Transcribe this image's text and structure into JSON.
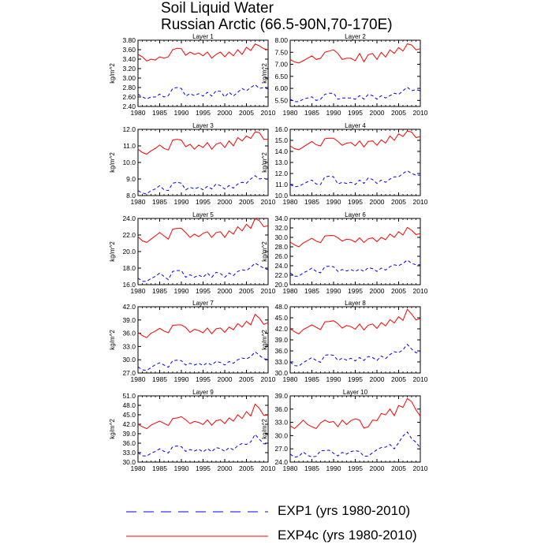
{
  "figure": {
    "title": "Soil Liquid Water",
    "subtitle": "Russian Arctic (66.5-90N,70-170E)"
  },
  "legend": {
    "items": [
      {
        "label": "EXP1 (yrs 1980-2010)",
        "color": "#0000ff",
        "style": "dashed"
      },
      {
        "label": "EXP4c (yrs 1980-2010)",
        "color": "#ff0000",
        "style": "solid"
      }
    ]
  },
  "chart_data": [
    {
      "type": "line",
      "title": "Layer 1",
      "ylabel": "kg/m^2",
      "xlim": [
        1980,
        2010
      ],
      "xticks": [
        "1980",
        "1985",
        "1990",
        "1995",
        "2000",
        "2005",
        "2010"
      ],
      "ylim": [
        2.4,
        3.8
      ],
      "yticks": [
        "2.40",
        "2.60",
        "2.80",
        "3.00",
        "3.20",
        "3.40",
        "3.60",
        "3.80"
      ],
      "years_start": 1980,
      "series": [
        {
          "name": "EXP1 (yrs 1980-2010)",
          "values": [
            2.66,
            2.6,
            2.56,
            2.6,
            2.6,
            2.66,
            2.6,
            2.63,
            2.78,
            2.8,
            2.78,
            2.62,
            2.67,
            2.63,
            2.67,
            2.62,
            2.7,
            2.62,
            2.73,
            2.72,
            2.6,
            2.7,
            2.62,
            2.7,
            2.78,
            2.73,
            2.8,
            2.86,
            2.78,
            2.8,
            2.77
          ]
        },
        {
          "name": "EXP4c (yrs 1980-2010)",
          "values": [
            3.5,
            3.45,
            3.36,
            3.4,
            3.38,
            3.45,
            3.42,
            3.45,
            3.6,
            3.63,
            3.62,
            3.48,
            3.55,
            3.5,
            3.53,
            3.47,
            3.55,
            3.42,
            3.5,
            3.55,
            3.45,
            3.55,
            3.47,
            3.6,
            3.5,
            3.65,
            3.58,
            3.72,
            3.68,
            3.62,
            3.6
          ]
        }
      ]
    },
    {
      "type": "line",
      "title": "Layer 2",
      "ylabel": "kg/m^2",
      "xlim": [
        1980,
        2010
      ],
      "xticks": [
        "1980",
        "1985",
        "1990",
        "1995",
        "2000",
        "2005",
        "2010"
      ],
      "ylim": [
        5.25,
        8.0
      ],
      "yticks": [
        "5.50",
        "6.00",
        "6.50",
        "7.00",
        "7.50",
        "8.00"
      ],
      "years_start": 1980,
      "series": [
        {
          "name": "EXP1 (yrs 1980-2010)",
          "values": [
            5.55,
            5.45,
            5.45,
            5.55,
            5.6,
            5.65,
            5.5,
            5.55,
            5.75,
            5.8,
            5.8,
            5.55,
            5.6,
            5.6,
            5.6,
            5.55,
            5.7,
            5.55,
            5.75,
            5.7,
            5.55,
            5.7,
            5.6,
            5.7,
            5.8,
            5.75,
            5.9,
            6.05,
            5.9,
            5.95,
            5.9
          ]
        },
        {
          "name": "EXP4c (yrs 1980-2010)",
          "values": [
            7.2,
            7.1,
            7.05,
            7.15,
            7.25,
            7.35,
            7.2,
            7.25,
            7.5,
            7.55,
            7.6,
            7.45,
            7.2,
            7.25,
            7.25,
            7.15,
            7.45,
            7.1,
            7.4,
            7.45,
            7.2,
            7.5,
            7.3,
            7.6,
            7.45,
            7.7,
            7.55,
            7.85,
            7.8,
            7.6,
            7.65
          ]
        }
      ]
    },
    {
      "type": "line",
      "title": "Layer 3",
      "ylabel": "kg/m^2",
      "xlim": [
        1980,
        2010
      ],
      "xticks": [
        "1980",
        "1985",
        "1990",
        "1995",
        "2000",
        "2005",
        "2010"
      ],
      "ylim": [
        8.0,
        12.0
      ],
      "yticks": [
        "8.0",
        "9.0",
        "10.0",
        "11.0",
        "12.0"
      ],
      "years_start": 1980,
      "series": [
        {
          "name": "EXP1 (yrs 1980-2010)",
          "values": [
            8.3,
            8.15,
            8.1,
            8.3,
            8.4,
            8.6,
            8.35,
            8.3,
            8.75,
            8.8,
            8.75,
            8.35,
            8.5,
            8.4,
            8.5,
            8.35,
            8.55,
            8.4,
            8.7,
            8.6,
            8.4,
            8.6,
            8.45,
            8.7,
            8.8,
            8.75,
            9.0,
            9.2,
            9.0,
            9.05,
            8.95
          ]
        },
        {
          "name": "EXP4c (yrs 1980-2010)",
          "values": [
            10.8,
            10.6,
            10.5,
            10.7,
            10.85,
            11.05,
            10.85,
            10.75,
            11.35,
            11.4,
            11.35,
            10.95,
            11.1,
            10.8,
            11.05,
            10.9,
            11.2,
            10.8,
            11.1,
            11.2,
            10.9,
            11.3,
            11.0,
            11.5,
            11.3,
            11.6,
            11.45,
            11.85,
            11.8,
            11.4,
            11.4
          ]
        }
      ]
    },
    {
      "type": "line",
      "title": "Layer 4",
      "ylabel": "kg/m^2",
      "xlim": [
        1980,
        2010
      ],
      "xticks": [
        "1980",
        "1985",
        "1990",
        "1995",
        "2000",
        "2005",
        "2010"
      ],
      "ylim": [
        10.0,
        16.0
      ],
      "yticks": [
        "10.0",
        "11.0",
        "12.0",
        "13.0",
        "14.0",
        "15.0",
        "16.0"
      ],
      "years_start": 1980,
      "series": [
        {
          "name": "EXP1 (yrs 1980-2010)",
          "values": [
            11.0,
            10.8,
            10.85,
            11.05,
            11.25,
            11.4,
            11.05,
            11.0,
            11.7,
            11.75,
            11.7,
            11.05,
            11.2,
            11.1,
            11.2,
            11.0,
            11.4,
            11.1,
            11.6,
            11.45,
            11.1,
            11.4,
            11.2,
            11.5,
            11.7,
            11.7,
            12.0,
            12.25,
            12.0,
            11.85,
            11.85
          ]
        },
        {
          "name": "EXP4c (yrs 1980-2010)",
          "values": [
            14.5,
            14.25,
            14.15,
            14.4,
            14.65,
            14.9,
            14.6,
            14.5,
            15.15,
            15.2,
            15.2,
            14.9,
            14.55,
            14.75,
            14.8,
            14.5,
            14.95,
            14.4,
            14.9,
            14.95,
            14.55,
            15.05,
            14.75,
            15.4,
            15.0,
            15.6,
            15.35,
            15.85,
            15.75,
            15.25,
            15.35
          ]
        }
      ]
    },
    {
      "type": "line",
      "title": "Layer 5",
      "ylabel": "kg/m^2",
      "xlim": [
        1980,
        2010
      ],
      "xticks": [
        "1980",
        "1985",
        "1990",
        "1995",
        "2000",
        "2005",
        "2010"
      ],
      "ylim": [
        16.0,
        24.0
      ],
      "yticks": [
        "16.0",
        "18.0",
        "20.0",
        "22.0",
        "24.0"
      ],
      "years_start": 1980,
      "series": [
        {
          "name": "EXP1 (yrs 1980-2010)",
          "values": [
            16.8,
            16.4,
            16.4,
            16.75,
            17.0,
            17.4,
            17.0,
            16.6,
            17.6,
            17.7,
            17.7,
            16.9,
            17.2,
            16.9,
            17.15,
            16.9,
            17.4,
            16.9,
            17.5,
            17.35,
            16.9,
            17.4,
            17.1,
            17.6,
            17.8,
            17.7,
            18.1,
            18.6,
            18.3,
            18.0,
            17.8
          ]
        },
        {
          "name": "EXP4c (yrs 1980-2010)",
          "values": [
            21.8,
            21.3,
            21.1,
            21.5,
            21.9,
            22.3,
            21.9,
            21.5,
            22.7,
            22.8,
            22.8,
            22.3,
            21.7,
            22.1,
            21.8,
            22.2,
            22.4,
            21.7,
            22.3,
            22.4,
            21.7,
            22.5,
            22.1,
            23.0,
            22.5,
            23.3,
            22.8,
            24.0,
            23.7,
            23.0,
            23.1
          ]
        }
      ]
    },
    {
      "type": "line",
      "title": "Layer 6",
      "ylabel": "kg/m^2",
      "xlim": [
        1980,
        2010
      ],
      "xticks": [
        "1980",
        "1985",
        "1990",
        "1995",
        "2000",
        "2005",
        "2010"
      ],
      "ylim": [
        20.0,
        34.0
      ],
      "yticks": [
        "20.0",
        "22.0",
        "24.0",
        "26.0",
        "28.0",
        "30.0",
        "32.0",
        "34.0"
      ],
      "years_start": 1980,
      "series": [
        {
          "name": "EXP1 (yrs 1980-2010)",
          "values": [
            22.5,
            21.8,
            21.8,
            22.5,
            22.9,
            23.5,
            22.8,
            22.5,
            23.8,
            23.9,
            23.8,
            22.8,
            23.2,
            22.9,
            23.2,
            22.8,
            23.3,
            22.8,
            23.6,
            23.4,
            22.8,
            23.5,
            23.1,
            23.8,
            24.2,
            24.0,
            24.5,
            25.2,
            24.5,
            24.2,
            24.2
          ]
        },
        {
          "name": "EXP4c (yrs 1980-2010)",
          "values": [
            29.0,
            28.4,
            28.0,
            28.8,
            29.3,
            29.8,
            29.2,
            28.9,
            30.3,
            30.4,
            30.4,
            29.9,
            29.2,
            29.6,
            29.5,
            29.0,
            29.9,
            28.9,
            29.7,
            29.9,
            29.1,
            30.0,
            29.5,
            30.7,
            30.0,
            31.2,
            30.5,
            32.1,
            31.5,
            30.6,
            30.8
          ]
        }
      ]
    },
    {
      "type": "line",
      "title": "Layer 7",
      "ylabel": "kg/m^2",
      "xlim": [
        1980,
        2010
      ],
      "xticks": [
        "1980",
        "1985",
        "1990",
        "1995",
        "2000",
        "2005",
        "2010"
      ],
      "ylim": [
        27.0,
        42.0
      ],
      "yticks": [
        "27.0",
        "30.0",
        "33.0",
        "36.0",
        "39.0",
        "42.0"
      ],
      "years_start": 1980,
      "series": [
        {
          "name": "EXP1 (yrs 1980-2010)",
          "values": [
            28.4,
            27.7,
            27.6,
            28.2,
            28.9,
            29.3,
            28.8,
            28.3,
            29.8,
            29.9,
            29.8,
            28.8,
            29.2,
            28.8,
            29.2,
            28.7,
            29.3,
            28.8,
            29.6,
            29.4,
            28.8,
            29.6,
            29.2,
            30.0,
            30.4,
            30.2,
            30.7,
            31.8,
            31.0,
            30.2,
            30.1
          ]
        },
        {
          "name": "EXP4c (yrs 1980-2010)",
          "values": [
            36.2,
            35.5,
            35.0,
            36.0,
            36.5,
            37.1,
            36.5,
            36.1,
            37.8,
            37.9,
            37.9,
            37.3,
            36.2,
            36.9,
            36.6,
            36.1,
            37.2,
            35.9,
            37.0,
            37.2,
            36.2,
            37.4,
            36.8,
            38.2,
            37.4,
            38.7,
            37.9,
            40.3,
            39.4,
            38.0,
            38.4
          ]
        }
      ]
    },
    {
      "type": "line",
      "title": "Layer 8",
      "ylabel": "kg/m^2",
      "xlim": [
        1980,
        2010
      ],
      "xticks": [
        "1980",
        "1985",
        "1990",
        "1995",
        "2000",
        "2005",
        "2010"
      ],
      "ylim": [
        30.0,
        48.0
      ],
      "yticks": [
        "30.0",
        "33.0",
        "36.0",
        "39.0",
        "42.0",
        "45.0",
        "48.0"
      ],
      "years_start": 1980,
      "series": [
        {
          "name": "EXP1 (yrs 1980-2010)",
          "values": [
            33.0,
            32.0,
            31.9,
            32.8,
            33.5,
            34.2,
            33.4,
            32.9,
            34.8,
            35.0,
            34.8,
            33.4,
            34.0,
            33.5,
            34.0,
            33.3,
            34.2,
            33.4,
            34.5,
            34.2,
            33.4,
            34.6,
            33.9,
            35.0,
            35.8,
            35.5,
            36.3,
            37.8,
            36.5,
            35.5,
            35.6
          ]
        },
        {
          "name": "EXP4c (yrs 1980-2010)",
          "values": [
            42.0,
            41.2,
            40.6,
            41.8,
            42.4,
            43.1,
            42.4,
            41.8,
            43.9,
            44.0,
            44.2,
            43.4,
            42.2,
            42.9,
            42.6,
            41.9,
            43.3,
            41.7,
            43.0,
            43.3,
            42.1,
            43.7,
            42.8,
            44.5,
            43.6,
            45.3,
            44.3,
            47.3,
            46.0,
            44.4,
            44.8
          ]
        }
      ]
    },
    {
      "type": "line",
      "title": "Layer 9",
      "ylabel": "kg/m^2",
      "xlim": [
        1980,
        2010
      ],
      "xticks": [
        "1980",
        "1985",
        "1990",
        "1995",
        "2000",
        "2005",
        "2010"
      ],
      "ylim": [
        30.0,
        51.0
      ],
      "yticks": [
        "30.0",
        "33.0",
        "36.0",
        "39.0",
        "42.0",
        "45.0",
        "48.0",
        "51.0"
      ],
      "years_start": 1980,
      "series": [
        {
          "name": "EXP1 (yrs 1980-2010)",
          "values": [
            33.0,
            32.0,
            31.9,
            32.8,
            33.4,
            34.2,
            33.4,
            32.9,
            34.9,
            35.1,
            34.9,
            33.4,
            34.0,
            33.5,
            34.1,
            33.2,
            34.3,
            33.3,
            34.6,
            34.3,
            33.4,
            34.6,
            33.9,
            35.2,
            35.9,
            35.6,
            36.4,
            38.8,
            37.2,
            35.8,
            35.7
          ]
        },
        {
          "name": "EXP4c (yrs 1980-2010)",
          "values": [
            42.0,
            41.2,
            40.6,
            41.7,
            42.4,
            43.0,
            42.3,
            41.6,
            43.8,
            44.0,
            44.4,
            43.4,
            42.2,
            42.9,
            42.6,
            41.9,
            43.4,
            41.7,
            43.1,
            43.5,
            42.2,
            44.0,
            43.0,
            45.0,
            43.8,
            46.0,
            44.6,
            48.4,
            47.0,
            44.8,
            44.9
          ]
        }
      ]
    },
    {
      "type": "line",
      "title": "Layer 10",
      "ylabel": "kg/m^2",
      "xlim": [
        1980,
        2010
      ],
      "xticks": [
        "1980",
        "1985",
        "1990",
        "1995",
        "2000",
        "2005",
        "2010"
      ],
      "ylim": [
        24.0,
        39.0
      ],
      "yticks": [
        "24.0",
        "27.0",
        "30.0",
        "33.0",
        "36.0",
        "39.0"
      ],
      "years_start": 1980,
      "series": [
        {
          "name": "EXP1 (yrs 1980-2010)",
          "values": [
            25.8,
            25.1,
            25.3,
            26.3,
            25.5,
            25.2,
            25.3,
            26.6,
            26.6,
            26.7,
            26.0,
            25.4,
            26.2,
            25.8,
            26.4,
            26.6,
            26.4,
            25.3,
            25.4,
            26.1,
            26.8,
            27.3,
            27.4,
            28.0,
            27.0,
            28.4,
            29.9,
            30.8,
            29.3,
            28.5,
            27.2
          ]
        },
        {
          "name": "EXP4c (yrs 1980-2010)",
          "values": [
            32.2,
            31.6,
            32.5,
            33.5,
            32.5,
            32.0,
            31.6,
            32.9,
            33.5,
            33.0,
            33.2,
            32.0,
            33.5,
            32.5,
            33.4,
            33.8,
            33.5,
            31.7,
            32.0,
            33.5,
            33.4,
            35.0,
            34.7,
            36.0,
            34.5,
            36.8,
            36.4,
            38.4,
            37.7,
            35.8,
            34.4
          ]
        }
      ]
    }
  ]
}
